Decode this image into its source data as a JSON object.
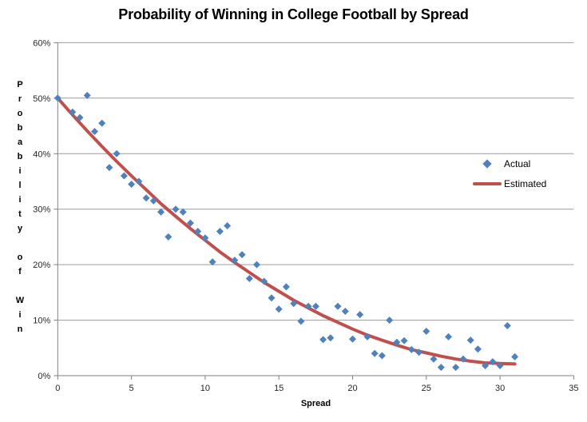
{
  "chart_data": {
    "type": "scatter",
    "title": "Probability of Winning in College Football by Spread",
    "xlabel": "Spread",
    "ylabel": "Probability of Win",
    "xlim": [
      0,
      35
    ],
    "ylim": [
      0,
      60
    ],
    "y_unit": "percent",
    "grid": true,
    "legend_position": "right-inside",
    "x_ticks": {
      "values": [
        0,
        5,
        10,
        15,
        20,
        25,
        30,
        35
      ],
      "labels": [
        "0",
        "5",
        "10",
        "15",
        "20",
        "25",
        "30",
        "35"
      ]
    },
    "y_ticks": {
      "values": [
        0,
        10,
        20,
        30,
        40,
        50,
        60
      ],
      "labels": [
        "0%",
        "10%",
        "20%",
        "30%",
        "40%",
        "50%",
        "60%"
      ]
    },
    "colors": {
      "actual": "#4F81BD",
      "estimated": "#C0504D",
      "grid": "#9C9C9C",
      "axis": "#808080",
      "tick_text": "#262626"
    },
    "series": [
      {
        "name": "Actual",
        "type": "scatter",
        "marker": "diamond",
        "color": "#4F81BD",
        "points": [
          [
            0,
            50
          ],
          [
            1,
            47.5
          ],
          [
            1.5,
            46.5
          ],
          [
            2,
            50.5
          ],
          [
            2.5,
            44
          ],
          [
            3,
            45.5
          ],
          [
            3.5,
            37.5
          ],
          [
            4,
            40
          ],
          [
            4.5,
            36
          ],
          [
            5,
            34.5
          ],
          [
            5.5,
            35
          ],
          [
            6,
            32
          ],
          [
            6.5,
            31.5
          ],
          [
            7,
            29.5
          ],
          [
            7.5,
            25
          ],
          [
            8,
            30
          ],
          [
            8.5,
            29.5
          ],
          [
            9,
            27.5
          ],
          [
            9.5,
            26
          ],
          [
            10,
            24.8
          ],
          [
            10.5,
            20.5
          ],
          [
            11,
            26
          ],
          [
            11.5,
            27
          ],
          [
            12,
            20.8
          ],
          [
            12.5,
            21.8
          ],
          [
            13,
            17.5
          ],
          [
            13.5,
            20
          ],
          [
            14,
            17
          ],
          [
            14.5,
            14
          ],
          [
            15,
            12
          ],
          [
            15.5,
            16
          ],
          [
            16,
            13
          ],
          [
            16.5,
            9.8
          ],
          [
            17,
            12.5
          ],
          [
            17.5,
            12.5
          ],
          [
            18,
            6.5
          ],
          [
            18.5,
            6.8
          ],
          [
            19,
            12.5
          ],
          [
            19.5,
            11.6
          ],
          [
            20,
            6.6
          ],
          [
            20.5,
            11
          ],
          [
            21,
            7
          ],
          [
            21.5,
            4
          ],
          [
            22,
            3.6
          ],
          [
            22.5,
            10
          ],
          [
            23,
            6
          ],
          [
            23.5,
            6.3
          ],
          [
            24,
            4.7
          ],
          [
            24.5,
            4.2
          ],
          [
            25,
            8
          ],
          [
            25.5,
            3
          ],
          [
            26,
            1.5
          ],
          [
            26.5,
            7
          ],
          [
            27,
            1.5
          ],
          [
            27.5,
            3
          ],
          [
            28,
            6.4
          ],
          [
            28.5,
            4.8
          ],
          [
            29,
            1.8
          ],
          [
            29.5,
            2.5
          ],
          [
            30,
            1.8
          ],
          [
            30.5,
            9
          ],
          [
            31,
            3.4
          ]
        ]
      },
      {
        "name": "Estimated",
        "type": "line",
        "color": "#C0504D",
        "points": [
          [
            0,
            50
          ],
          [
            1,
            47
          ],
          [
            2,
            44.1
          ],
          [
            3,
            41.3
          ],
          [
            4,
            38.6
          ],
          [
            5,
            36
          ],
          [
            6,
            33.5
          ],
          [
            7,
            31
          ],
          [
            8,
            28.7
          ],
          [
            9,
            26.5
          ],
          [
            10,
            24.4
          ],
          [
            11,
            22.3
          ],
          [
            12,
            20.4
          ],
          [
            13,
            18.6
          ],
          [
            14,
            16.8
          ],
          [
            15,
            15.2
          ],
          [
            16,
            13.6
          ],
          [
            17,
            12.2
          ],
          [
            18,
            10.8
          ],
          [
            19,
            9.6
          ],
          [
            20,
            8.4
          ],
          [
            21,
            7.3
          ],
          [
            22,
            6.4
          ],
          [
            23,
            5.5
          ],
          [
            24,
            4.7
          ],
          [
            25,
            4.1
          ],
          [
            26,
            3.5
          ],
          [
            27,
            3.0
          ],
          [
            28,
            2.6
          ],
          [
            29,
            2.3
          ],
          [
            30,
            2.2
          ],
          [
            31,
            2.1
          ]
        ]
      }
    ]
  }
}
